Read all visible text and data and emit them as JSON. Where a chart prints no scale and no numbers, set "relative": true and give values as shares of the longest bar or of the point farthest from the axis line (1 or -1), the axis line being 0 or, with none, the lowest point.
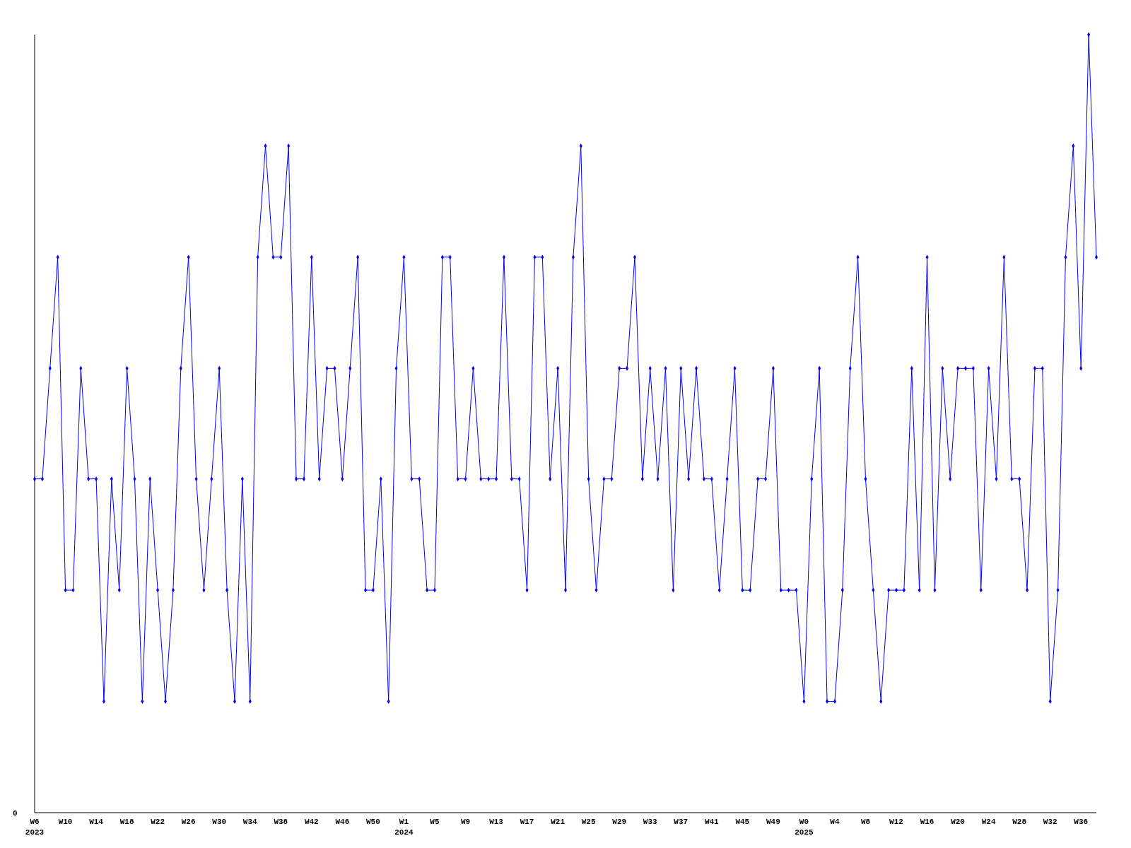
{
  "chart_data": {
    "type": "line",
    "relative": true,
    "marker": "diamond",
    "line_style": "solid",
    "categories": [
      "W6",
      null,
      null,
      null,
      "W10",
      null,
      null,
      null,
      "W14",
      null,
      null,
      null,
      "W18",
      null,
      null,
      null,
      "W22",
      null,
      null,
      null,
      "W26",
      null,
      null,
      null,
      "W30",
      null,
      null,
      null,
      "W34",
      null,
      null,
      null,
      "W38",
      null,
      null,
      null,
      "W42",
      null,
      null,
      null,
      "W46",
      null,
      null,
      null,
      "W50",
      null,
      null,
      null,
      "W1",
      null,
      null,
      null,
      "W5",
      null,
      null,
      null,
      "W9",
      null,
      null,
      null,
      "W13",
      null,
      null,
      null,
      "W17",
      null,
      null,
      null,
      "W21",
      null,
      null,
      null,
      "W25",
      null,
      null,
      null,
      "W29",
      null,
      null,
      null,
      "W33",
      null,
      null,
      null,
      "W37",
      null,
      null,
      null,
      "W41",
      null,
      null,
      null,
      "W45",
      null,
      null,
      null,
      "W49",
      null,
      null,
      null,
      "W0",
      null,
      null,
      null,
      "W4",
      null,
      null,
      null,
      "W8",
      null,
      null,
      null,
      "W12",
      null,
      null,
      null,
      "W16",
      null,
      null,
      null,
      "W20",
      null,
      null,
      null,
      "W24",
      null,
      null,
      null,
      "W28",
      null,
      null,
      null,
      "W32",
      null,
      null,
      null,
      "W36",
      null,
      null
    ],
    "series": [
      {
        "color": "#0000ff",
        "values": [
          0.429,
          0.429,
          0.571,
          0.714,
          0.286,
          0.286,
          0.571,
          0.429,
          0.429,
          0.143,
          0.429,
          0.286,
          0.571,
          0.429,
          0.143,
          0.429,
          0.286,
          0.143,
          0.286,
          0.571,
          0.714,
          0.429,
          0.286,
          0.429,
          0.571,
          0.286,
          0.143,
          0.429,
          0.143,
          0.714,
          0.857,
          0.714,
          0.714,
          0.857,
          0.429,
          0.429,
          0.714,
          0.429,
          0.571,
          0.571,
          0.429,
          0.571,
          0.714,
          0.286,
          0.286,
          0.429,
          0.143,
          0.571,
          0.714,
          0.429,
          0.429,
          0.286,
          0.286,
          0.714,
          0.714,
          0.429,
          0.429,
          0.571,
          0.429,
          0.429,
          0.429,
          0.714,
          0.429,
          0.429,
          0.286,
          0.714,
          0.714,
          0.429,
          0.571,
          0.286,
          0.714,
          0.857,
          0.429,
          0.286,
          0.429,
          0.429,
          0.571,
          0.571,
          0.714,
          0.429,
          0.571,
          0.429,
          0.571,
          0.286,
          0.571,
          0.429,
          0.571,
          0.429,
          0.429,
          0.286,
          0.429,
          0.571,
          0.286,
          0.286,
          0.429,
          0.429,
          0.571,
          0.286,
          0.286,
          0.286,
          0.143,
          0.429,
          0.571,
          0.143,
          0.143,
          0.286,
          0.571,
          0.714,
          0.429,
          0.286,
          0.143,
          0.286,
          0.286,
          0.286,
          0.571,
          0.286,
          0.714,
          0.286,
          0.571,
          0.429,
          0.571,
          0.571,
          0.571,
          0.286,
          0.571,
          0.429,
          0.714,
          0.429,
          0.429,
          0.286,
          0.571,
          0.571,
          0.143,
          0.286,
          0.714,
          0.857,
          0.571,
          1,
          0.714
        ]
      }
    ],
    "annotations": [
      "2023",
      "2024",
      "2025",
      "0"
    ]
  }
}
